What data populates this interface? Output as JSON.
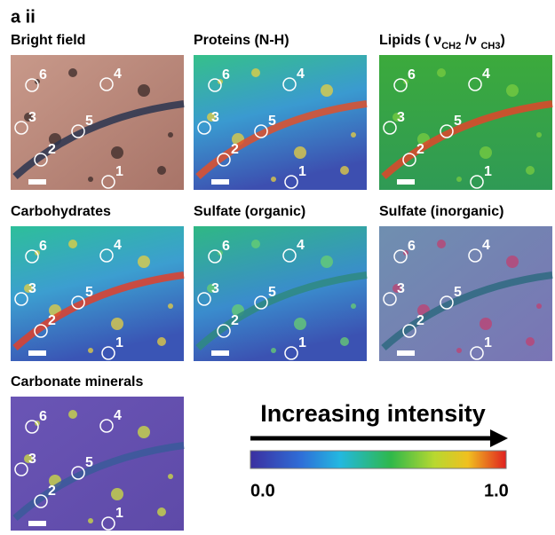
{
  "figure_label": "a ii",
  "marker_labels": [
    "6",
    "4",
    "3",
    "5",
    "2",
    "1"
  ],
  "panels": [
    {
      "title": "Bright field"
    },
    {
      "title": "Proteins (N-H)"
    },
    {
      "title_parts": [
        {
          "text": "Lipids ( ν"
        },
        {
          "sub": "CH2"
        },
        {
          "text": " /ν "
        },
        {
          "sub": "CH3"
        },
        {
          "text": ")"
        }
      ]
    },
    {
      "title": "Carbohydrates"
    },
    {
      "title": "Sulfate (organic)"
    },
    {
      "title": "Sulfate (inorganic)"
    },
    {
      "title": "Carbonate minerals"
    }
  ],
  "colorbar": {
    "caption": "Increasing intensity",
    "min_label": "0.0",
    "max_label": "1.0"
  }
}
